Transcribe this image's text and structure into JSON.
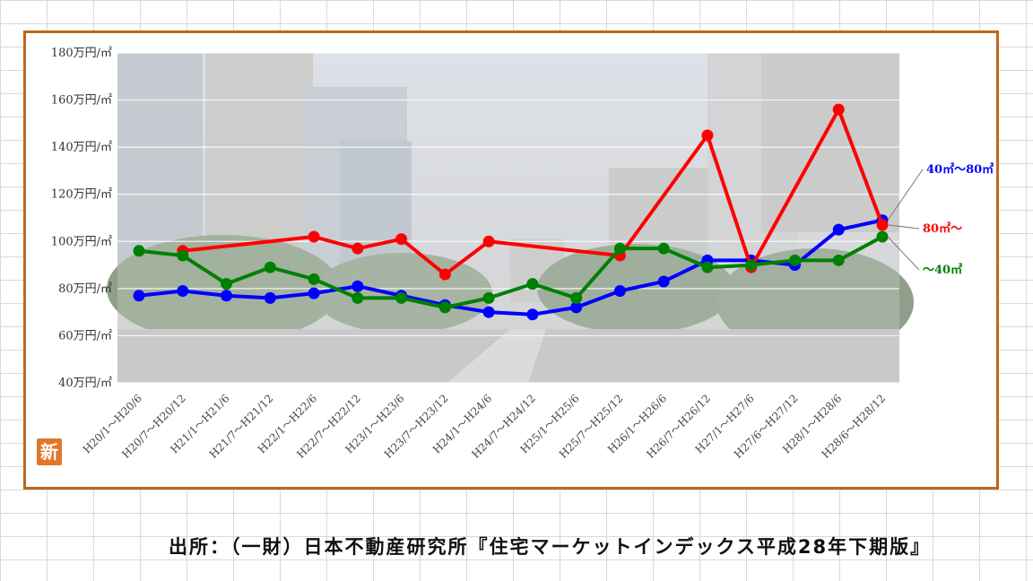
{
  "badge": {
    "text": "新",
    "color": "#e0782a"
  },
  "source": "出所：（一財）日本不動産研究所『住宅マーケットインデックス平成28年下期版』",
  "colors": {
    "frame": "#c0661a",
    "photo_bg": "#cfcfcf",
    "grid": "#ffffff"
  },
  "chart_data": {
    "type": "line",
    "ylim": [
      40,
      180
    ],
    "yticks": [
      {
        "value": 180,
        "label": "180万円/㎡"
      },
      {
        "value": 160,
        "label": "160万円/㎡"
      },
      {
        "value": 140,
        "label": "140万円/㎡"
      },
      {
        "value": 120,
        "label": "120万円/㎡"
      },
      {
        "value": 100,
        "label": "100万円/㎡"
      },
      {
        "value": 80,
        "label": "80万円/㎡"
      },
      {
        "value": 60,
        "label": "60万円/㎡"
      },
      {
        "value": 40,
        "label": "40万円/㎡"
      }
    ],
    "categories": [
      "H20/1〜H20/6",
      "H20/7〜H20/12",
      "H21/1〜H21/6",
      "H21/7〜H21/12",
      "H22/1〜H22/6",
      "H22/7〜H22/12",
      "H23/1〜H23/6",
      "H23/7〜H23/12",
      "H24/1〜H24/6",
      "H24/7〜H24/12",
      "H25/1〜H25/6",
      "H25/7〜H25/12",
      "H26/1〜H26/6",
      "H26/7〜H26/12",
      "H27/1〜H27/6",
      "H27/6〜H27/12",
      "H28/1〜H28/6",
      "H28/6〜H28/12"
    ],
    "series": [
      {
        "name": "40㎡〜80㎡",
        "color": "#0000ff",
        "values": [
          77,
          79,
          77,
          76,
          78,
          81,
          77,
          73,
          70,
          69,
          72,
          79,
          83,
          92,
          92,
          90,
          105,
          109
        ]
      },
      {
        "name": "80㎡〜",
        "color": "#ff0000",
        "values": [
          null,
          96,
          null,
          null,
          102,
          97,
          101,
          86,
          100,
          null,
          null,
          94,
          null,
          145,
          89,
          null,
          156,
          107
        ]
      },
      {
        "name": "〜40㎡",
        "color": "#008000",
        "values": [
          96,
          94,
          82,
          89,
          84,
          76,
          76,
          72,
          76,
          82,
          76,
          97,
          97,
          89,
          90,
          92,
          92,
          102
        ]
      }
    ],
    "grid": true,
    "legend": "right"
  }
}
